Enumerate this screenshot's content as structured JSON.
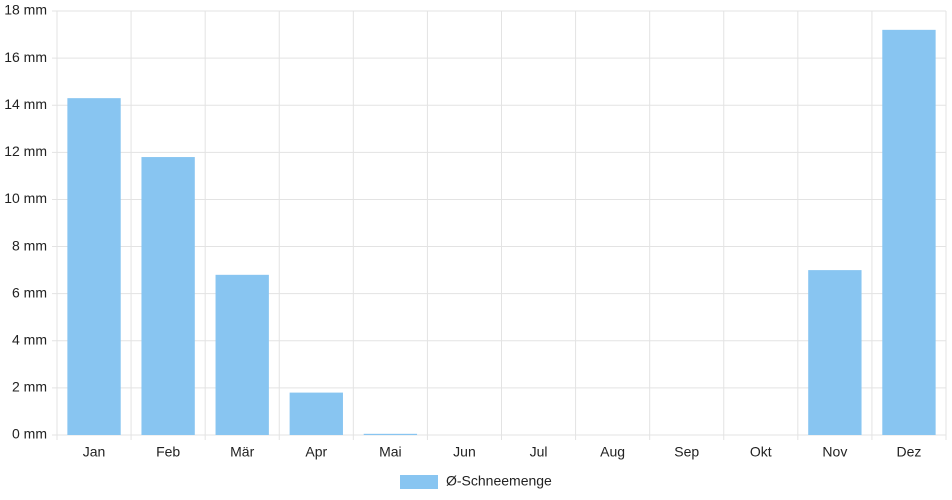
{
  "chart_data": {
    "type": "bar",
    "categories": [
      "Jan",
      "Feb",
      "Mär",
      "Apr",
      "Mai",
      "Jun",
      "Jul",
      "Aug",
      "Sep",
      "Okt",
      "Nov",
      "Dez"
    ],
    "series": [
      {
        "name": "Ø-Schneemenge",
        "color": "#88c5f1",
        "values": [
          14.3,
          11.8,
          6.8,
          1.8,
          0.05,
          0,
          0,
          0,
          0,
          0,
          7.0,
          17.2
        ]
      }
    ],
    "ylim": [
      0,
      18
    ],
    "yticks": [
      {
        "value": 0,
        "label": "0 mm"
      },
      {
        "value": 2,
        "label": "2 mm"
      },
      {
        "value": 4,
        "label": "4 mm"
      },
      {
        "value": 6,
        "label": "6 mm"
      },
      {
        "value": 8,
        "label": "8 mm"
      },
      {
        "value": 10,
        "label": "10 mm"
      },
      {
        "value": 12,
        "label": "12 mm"
      },
      {
        "value": 14,
        "label": "14 mm"
      },
      {
        "value": 16,
        "label": "16 mm"
      },
      {
        "value": 18,
        "label": "18 mm"
      }
    ],
    "grid": true,
    "legend": "bottom"
  }
}
